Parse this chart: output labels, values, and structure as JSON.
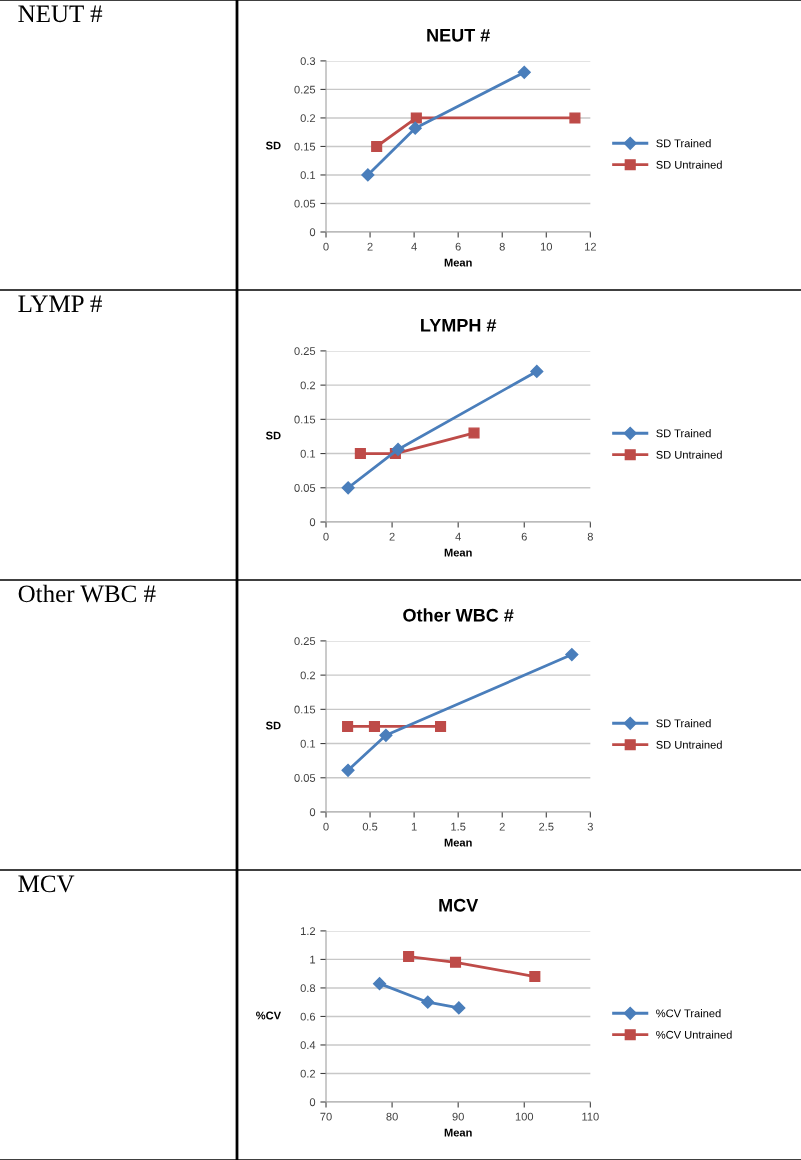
{
  "chart_data": [
    {
      "type": "line",
      "title": "NEUT #",
      "xlabel": "Mean",
      "ylabel": "SD",
      "annotations": [
        "NEUT #"
      ],
      "xlim": [
        0,
        12
      ],
      "xticks": [
        0,
        2,
        4,
        6,
        8,
        10,
        12
      ],
      "ylim": [
        0,
        0.3
      ],
      "yticks": [
        0,
        0.05,
        0.1,
        0.15,
        0.2,
        0.25,
        0.3
      ],
      "grid": "y",
      "legend": "right",
      "series": [
        {
          "name": "SD Trained",
          "color": "#4a7ebb",
          "marker": "diamond",
          "x": [
            1.9,
            4.05,
            9.0
          ],
          "values": [
            0.1,
            0.182,
            0.28
          ]
        },
        {
          "name": "SD Untrained",
          "color": "#be4b48",
          "marker": "square",
          "x": [
            2.3,
            4.1,
            11.3
          ],
          "values": [
            0.15,
            0.2,
            0.2
          ]
        }
      ]
    },
    {
      "type": "line",
      "title": "LYMPH #",
      "xlabel": "Mean",
      "ylabel": "SD",
      "annotations": [
        "LYMP #"
      ],
      "xlim": [
        0,
        8
      ],
      "xticks": [
        0,
        2,
        4,
        6,
        8
      ],
      "ylim": [
        0,
        0.25
      ],
      "yticks": [
        0,
        0.05,
        0.1,
        0.15,
        0.2,
        0.25
      ],
      "grid": "y",
      "legend": "right",
      "series": [
        {
          "name": "SD Trained",
          "color": "#4a7ebb",
          "marker": "diamond",
          "x": [
            0.67,
            2.18,
            6.38
          ],
          "values": [
            0.05,
            0.106,
            0.22
          ]
        },
        {
          "name": "SD Untrained",
          "color": "#be4b48",
          "marker": "square",
          "x": [
            1.04,
            2.1,
            4.48
          ],
          "values": [
            0.1,
            0.1,
            0.13
          ]
        }
      ]
    },
    {
      "type": "line",
      "title": "Other WBC #",
      "xlabel": "Mean",
      "ylabel": "SD",
      "annotations": [
        "Other WBC #"
      ],
      "xlim": [
        0,
        3
      ],
      "xticks": [
        0,
        0.5,
        1,
        1.5,
        2,
        2.5,
        3
      ],
      "ylim": [
        0,
        0.25
      ],
      "yticks": [
        0,
        0.05,
        0.1,
        0.15,
        0.2,
        0.25
      ],
      "grid": "y",
      "legend": "right",
      "series": [
        {
          "name": "SD Trained",
          "color": "#4a7ebb",
          "marker": "diamond",
          "x": [
            0.25,
            0.68,
            2.79
          ],
          "values": [
            0.061,
            0.112,
            0.23
          ]
        },
        {
          "name": "SD Untrained",
          "color": "#be4b48",
          "marker": "square",
          "x": [
            0.245,
            0.55,
            1.3
          ],
          "values": [
            0.125,
            0.125,
            0.125
          ]
        }
      ]
    },
    {
      "type": "line",
      "title": "MCV",
      "xlabel": "Mean",
      "ylabel": "%CV",
      "annotations": [
        "MCV"
      ],
      "xlim": [
        70,
        110
      ],
      "xticks": [
        70,
        80,
        90,
        100,
        110
      ],
      "ylim": [
        0,
        1.2
      ],
      "yticks": [
        0,
        0.2,
        0.4,
        0.6,
        0.8,
        1,
        1.2
      ],
      "grid": "y",
      "legend": "right",
      "series": [
        {
          "name": "%CV Trained",
          "color": "#4a7ebb",
          "marker": "diamond",
          "x": [
            78.1,
            85.4,
            90.1
          ],
          "values": [
            0.83,
            0.7,
            0.66
          ]
        },
        {
          "name": "%CV Untrained",
          "color": "#be4b48",
          "marker": "square",
          "x": [
            82.5,
            89.6,
            101.6
          ],
          "values": [
            1.02,
            0.98,
            0.88
          ]
        }
      ]
    }
  ]
}
